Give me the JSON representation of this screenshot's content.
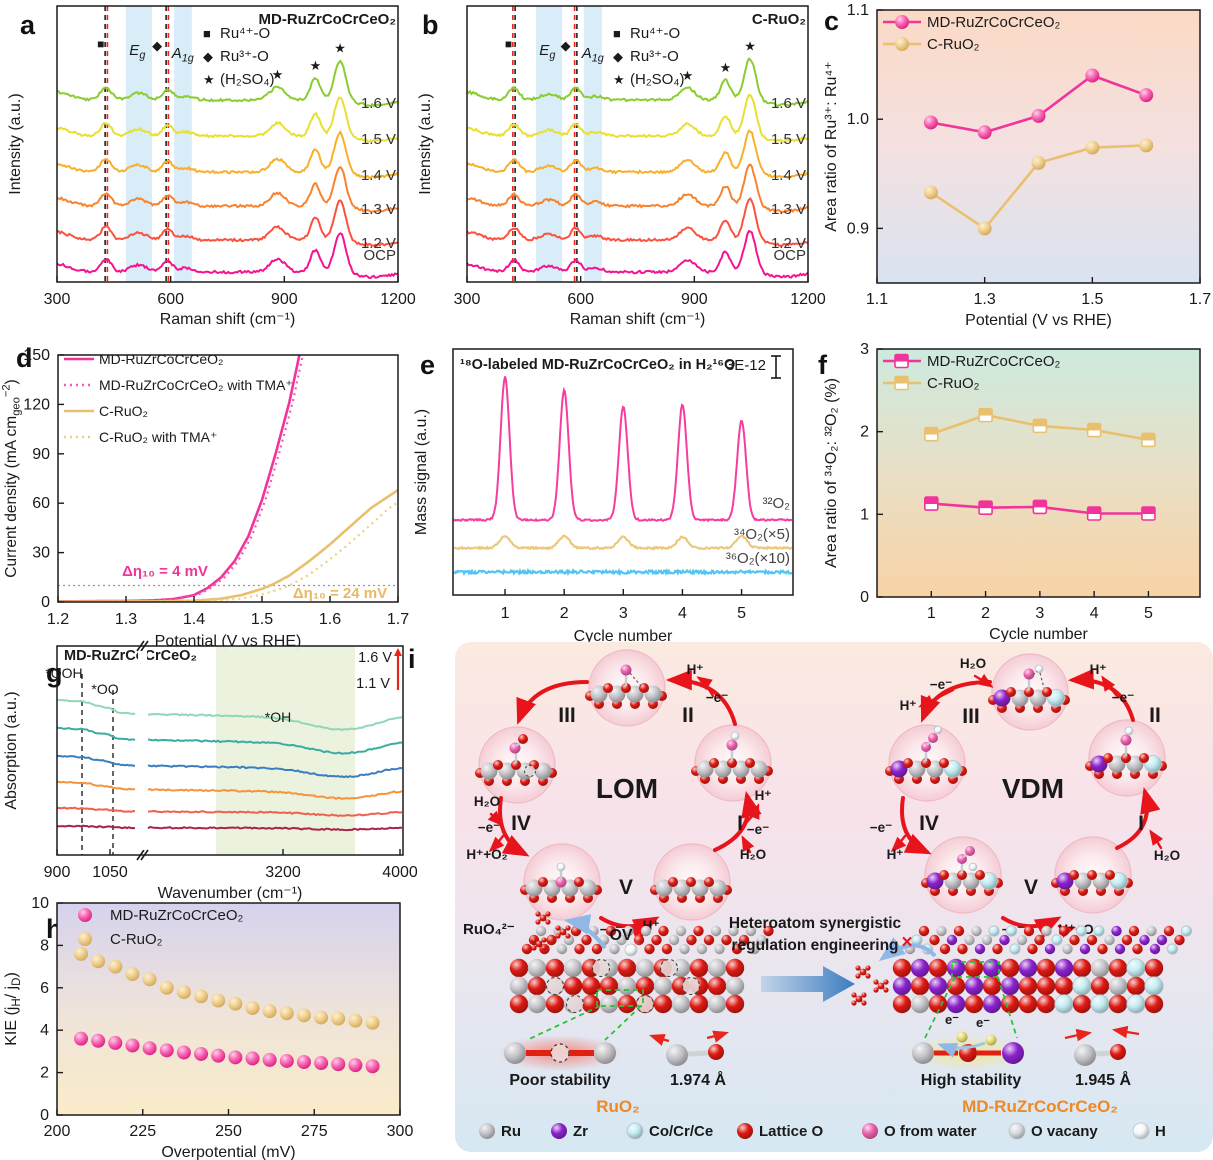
{
  "figure": {
    "panels": {
      "a": "a",
      "b": "b",
      "c": "c",
      "d": "d",
      "e": "e",
      "f": "f",
      "g": "g",
      "h": "h",
      "i": "i"
    }
  },
  "chart_data": [
    {
      "id": "a",
      "type": "raman-spectra",
      "title": "MD-RuZrCoCrCeO₂",
      "xlabel": "Raman shift (cm⁻¹)",
      "ylabel": "Intensity (a.u.)",
      "xlim": [
        300,
        1200
      ],
      "xticks": [
        300,
        600,
        900,
        1200
      ],
      "curves": [
        {
          "label": "1.6 V",
          "color": "#8bcc2f"
        },
        {
          "label": "1.5 V",
          "color": "#e8e030"
        },
        {
          "label": "1.4 V",
          "color": "#f8b02a"
        },
        {
          "label": "1.3 V",
          "color": "#f8822e"
        },
        {
          "label": "1.2 V",
          "color": "#fb5240"
        },
        {
          "label": "OCP",
          "color": "#f3148f"
        }
      ],
      "legend": [
        {
          "marker": "■",
          "label": "Ru⁴⁺-O"
        },
        {
          "marker": "◆",
          "label": "Ru³⁺-O"
        },
        {
          "marker": "★",
          "label": "(H₂SO₄)"
        }
      ],
      "bands": [
        [
          482,
          551
        ],
        [
          609,
          656
        ]
      ],
      "band_labels": [
        "E_{g}",
        "A_{1g}"
      ],
      "dash_pairs": [
        [
          427,
          433
        ],
        [
          588,
          594
        ]
      ],
      "dash_colors": [
        "#222222",
        "#e8241c"
      ],
      "peaks": [
        {
          "c": 429,
          "h": 13,
          "w": 14
        },
        {
          "c": 515,
          "h": 7,
          "w": 22
        },
        {
          "c": 592,
          "h": 11,
          "w": 13
        },
        {
          "c": 640,
          "h": 4,
          "w": 18
        },
        {
          "c": 882,
          "h": 13,
          "w": 20
        },
        {
          "c": 982,
          "h": 22,
          "w": 13
        },
        {
          "c": 1047,
          "h": 40,
          "w": 15
        },
        {
          "c": 1135,
          "h": -5,
          "w": 45
        }
      ],
      "star_x": [
        882,
        982,
        1047
      ]
    },
    {
      "id": "b",
      "type": "raman-spectra",
      "title": "C-RuO₂",
      "xlabel": "Raman shift (cm⁻¹)",
      "ylabel": "Intensity (a.u.)",
      "xlim": [
        300,
        1200
      ],
      "xticks": [
        300,
        600,
        900,
        1200
      ],
      "curves": [
        {
          "label": "1.6 V",
          "color": "#8bcc2f"
        },
        {
          "label": "1.5 V",
          "color": "#e8e030"
        },
        {
          "label": "1.4 V",
          "color": "#f8b02a"
        },
        {
          "label": "1.3 V",
          "color": "#f8822e"
        },
        {
          "label": "1.2 V",
          "color": "#fb5240"
        },
        {
          "label": "OCP",
          "color": "#f3148f"
        }
      ],
      "legend": [
        {
          "marker": "■",
          "label": "Ru⁴⁺-O"
        },
        {
          "marker": "◆",
          "label": "Ru³⁺-O"
        },
        {
          "marker": "★",
          "label": "(H₂SO₄)"
        }
      ],
      "bands": [
        [
          482,
          551
        ],
        [
          609,
          656
        ]
      ],
      "band_labels": [
        "E_{g}",
        "A_{1g}"
      ],
      "dash_pairs": [
        [
          421,
          427
        ],
        [
          584,
          590
        ]
      ],
      "dash_colors": [
        "#e8241c",
        "#222222"
      ],
      "peaks": [
        {
          "c": 424,
          "h": 12,
          "w": 14
        },
        {
          "c": 515,
          "h": 6,
          "w": 22
        },
        {
          "c": 587,
          "h": 12,
          "w": 13
        },
        {
          "c": 640,
          "h": 4,
          "w": 18
        },
        {
          "c": 882,
          "h": 12,
          "w": 20
        },
        {
          "c": 982,
          "h": 20,
          "w": 13
        },
        {
          "c": 1047,
          "h": 42,
          "w": 15
        },
        {
          "c": 1135,
          "h": -5,
          "w": 45
        }
      ],
      "star_x": [
        882,
        982,
        1047
      ]
    },
    {
      "id": "c",
      "type": "line-scatter",
      "marker": "ball",
      "xlabel": "Potential (V vs RHE)",
      "ylabel": "Area ratio of Ru³⁺: Ru⁴⁺",
      "xlim": [
        1.1,
        1.7
      ],
      "xticks": [
        1.1,
        1.3,
        1.5,
        1.7
      ],
      "ylim": [
        0.85,
        1.1
      ],
      "yticks": [
        0.9,
        1.0,
        1.1
      ],
      "bg": [
        "#fbd9c5",
        "#f4e1e0",
        "#d9e3f0"
      ],
      "series": [
        {
          "name": "MD-RuZrCoCrCeO₂",
          "color": "#f1349b",
          "ball": [
            "#ffd2ea",
            "#f868b4",
            "#d61578"
          ],
          "x": [
            1.2,
            1.3,
            1.4,
            1.5,
            1.6
          ],
          "y": [
            0.997,
            0.988,
            1.003,
            1.04,
            1.022
          ]
        },
        {
          "name": "C-RuO₂",
          "color": "#e9c06d",
          "ball": [
            "#fdf0d0",
            "#f0d194",
            "#cfa14e"
          ],
          "x": [
            1.2,
            1.3,
            1.4,
            1.5,
            1.6
          ],
          "y": [
            0.933,
            0.9,
            0.96,
            0.974,
            0.976
          ]
        }
      ]
    },
    {
      "id": "d",
      "type": "lsv",
      "xlabel": "Potential (V vs RHE)",
      "ylabel": "Current density (mA cm_{geo}^{−2})",
      "xlim": [
        1.2,
        1.7
      ],
      "xticks": [
        "1.2",
        "1.3",
        "1.4",
        "1.5",
        "1.6",
        "1.7"
      ],
      "ylim": [
        0,
        150
      ],
      "yticks": [
        0,
        30,
        60,
        90,
        120,
        150
      ],
      "ref_y": 10,
      "curves": {
        "p": [
          [
            1.2,
            0.4
          ],
          [
            1.3,
            0.6
          ],
          [
            1.34,
            1.0
          ],
          [
            1.37,
            1.8
          ],
          [
            1.4,
            4.2
          ],
          [
            1.42,
            8.5
          ],
          [
            1.44,
            15
          ],
          [
            1.46,
            25
          ],
          [
            1.48,
            40
          ],
          [
            1.5,
            62
          ],
          [
            1.52,
            90
          ],
          [
            1.54,
            121
          ],
          [
            1.555,
            150
          ],
          [
            1.565,
            165
          ]
        ],
        "g": [
          [
            1.2,
            0.2
          ],
          [
            1.35,
            0.4
          ],
          [
            1.4,
            0.8
          ],
          [
            1.44,
            2.0
          ],
          [
            1.47,
            4.2
          ],
          [
            1.5,
            8.0
          ],
          [
            1.515,
            10.5
          ],
          [
            1.54,
            16
          ],
          [
            1.57,
            25
          ],
          [
            1.6,
            35
          ],
          [
            1.63,
            46
          ],
          [
            1.66,
            57
          ],
          [
            1.7,
            68
          ]
        ]
      },
      "series": [
        {
          "name": "MD-RuZrCoCrCeO₂",
          "color": "#f1349b",
          "dash": false,
          "shift": 0,
          "key": "p"
        },
        {
          "name": "MD-RuZrCoCrCeO₂ with TMA⁺",
          "color": "#f45cb0",
          "dash": true,
          "shift": 0.005,
          "key": "p"
        },
        {
          "name": "C-RuO₂",
          "color": "#e9c06d",
          "dash": false,
          "shift": 0,
          "key": "g"
        },
        {
          "name": "C-RuO₂ with TMA⁺",
          "color": "#eecd87",
          "dash": true,
          "shift": 0.027,
          "key": "g"
        }
      ],
      "annotations": [
        {
          "text": "Δη₁₀ = 4 mV",
          "color": "#f1349b"
        },
        {
          "text": "Δη₁₀ = 24 mV",
          "color": "#e9b964"
        }
      ]
    },
    {
      "id": "e",
      "type": "dems",
      "title": "¹⁸O-labeled MD-RuZrCoCrCeO₂ in H₂¹⁶O",
      "scalebar": "3E-12",
      "xlabel": "Cycle number",
      "ylabel": "Mass signal (a.u.)",
      "xticks": [
        1,
        2,
        3,
        4,
        5
      ],
      "traces": [
        {
          "label": "³²O₂",
          "color": "#f63d9e",
          "baseline": 200,
          "heights": [
            143,
            130,
            113,
            115,
            100
          ],
          "width": 0.075,
          "label_y": 188
        },
        {
          "label": "³⁴O₂(×5)",
          "color": "#ecc87c",
          "baseline": 228,
          "heights": [
            12,
            12,
            11,
            11,
            12
          ],
          "width": 0.09,
          "label_y": 219
        },
        {
          "label": "³⁶O₂(×10)",
          "color": "#54c4f0",
          "baseline": 252,
          "heights": [
            0,
            0,
            0,
            0,
            0
          ],
          "width": 0.09,
          "label_y": 243
        }
      ]
    },
    {
      "id": "f",
      "type": "line-scatter",
      "marker": "sq",
      "xlabel": "Cycle number",
      "ylabel": "Area ratio of ³⁴O₂: ³²O₂ (%)",
      "xlim": [
        0,
        5.95
      ],
      "xticks": [
        1,
        2,
        3,
        4,
        5
      ],
      "ylim": [
        0,
        3
      ],
      "yticks": [
        0,
        1,
        2,
        3
      ],
      "bg": [
        "#cdeade",
        "#e9dfc6",
        "#f8d3a6"
      ],
      "series": [
        {
          "name": "MD-RuZrCoCrCeO₂",
          "color": "#f1349b",
          "ball": [
            "#ffd2ea",
            "#f868b4",
            "#d61578"
          ],
          "x": [
            1,
            2,
            3,
            4,
            5
          ],
          "y": [
            1.13,
            1.08,
            1.09,
            1.01,
            1.01
          ]
        },
        {
          "name": "C-RuO₂",
          "color": "#e9c06d",
          "ball": [
            "#fdf0d0",
            "#f0d194",
            "#cfa14e"
          ],
          "x": [
            1,
            2,
            3,
            4,
            5
          ],
          "y": [
            1.97,
            2.2,
            2.07,
            2.02,
            1.9
          ]
        }
      ]
    },
    {
      "id": "g",
      "type": "ftir",
      "title": "MD-RuZrCoCrCeO₂",
      "xlabel": "Wavenumber (cm⁻¹)",
      "ylabel": "Absorption (a.u.)",
      "tick_labels": [
        "900",
        "1050",
        "3200",
        "4000"
      ],
      "dash_labels": [
        "*OOH",
        "*OO"
      ],
      "oh_label": "*OH",
      "arrow_labels": [
        "1.6 V",
        "1.1 V"
      ],
      "colors": [
        "#90d7b5",
        "#3aaca1",
        "#3b7ec0",
        "#f6933d",
        "#ef604e",
        "#a72547"
      ],
      "baselines": [
        60,
        88,
        116,
        142,
        168,
        186
      ],
      "amps": [
        1,
        0.85,
        0.7,
        0.55,
        0.25,
        0.12
      ]
    },
    {
      "id": "h",
      "type": "scatter",
      "marker": "ball",
      "xlabel": "Overpotential (mV)",
      "ylabel": "KIE (j_{H}/ j_{D})",
      "xlim": [
        200,
        300
      ],
      "xticks": [
        200,
        225,
        250,
        275,
        300
      ],
      "ylim": [
        0,
        10
      ],
      "yticks": [
        0,
        2,
        4,
        6,
        8,
        10
      ],
      "bg": [
        "#d6d2ed",
        "#eee3da",
        "#faecca"
      ],
      "series": [
        {
          "name": "MD-RuZrCoCrCeO₂",
          "color": "#f1349b",
          "ball": [
            "#ffd2ea",
            "#f868b4",
            "#d61578"
          ],
          "x": [
            207,
            212,
            217,
            222,
            227,
            232,
            237,
            242,
            247,
            252,
            257,
            262,
            267,
            272,
            277,
            282,
            287,
            292
          ],
          "y": [
            3.6,
            3.5,
            3.4,
            3.28,
            3.15,
            3.05,
            2.95,
            2.88,
            2.8,
            2.72,
            2.67,
            2.6,
            2.55,
            2.5,
            2.45,
            2.4,
            2.35,
            2.3
          ]
        },
        {
          "name": "C-RuO₂",
          "color": "#e9c06d",
          "ball": [
            "#fdf0d0",
            "#f0d194",
            "#cfa14e"
          ],
          "x": [
            207,
            212,
            217,
            222,
            227,
            232,
            237,
            242,
            247,
            252,
            257,
            262,
            267,
            272,
            277,
            282,
            287,
            292
          ],
          "y": [
            7.6,
            7.25,
            7.0,
            6.65,
            6.4,
            6.0,
            5.8,
            5.6,
            5.4,
            5.25,
            5.05,
            4.9,
            4.8,
            4.7,
            4.6,
            4.55,
            4.45,
            4.35
          ]
        }
      ]
    }
  ],
  "mechanism": {
    "lom": "LOM",
    "vdm": "VDM",
    "steps": [
      "I",
      "II",
      "III",
      "IV",
      "V"
    ],
    "h_plus": "H⁺",
    "e_minus": "−e⁻",
    "h2o": "H₂O",
    "h_o2": "H⁺+O₂",
    "ruo4": "RuO₄²⁻",
    "ov": "O_{V}",
    "x_mark": "×",
    "e_label": "e⁻",
    "het1": "Heteroatom synergistic",
    "het2": "regulation engineering",
    "poor": "Poor stability",
    "high": "High stability",
    "len_poor": "1.974 Å",
    "len_high": "1.945 Å",
    "mat_poor": "RuO₂",
    "mat_high": "MD-RuZrCoCrCeO₂",
    "legend": [
      {
        "key": "ru",
        "label": "Ru"
      },
      {
        "key": "zr",
        "label": "Zr"
      },
      {
        "key": "ce",
        "label": "Co/Cr/Ce"
      },
      {
        "key": "o",
        "label": "Lattice O"
      },
      {
        "key": "ow",
        "label": "O from water"
      },
      {
        "key": "ovac",
        "label": "O vacany"
      },
      {
        "key": "h",
        "label": "H"
      }
    ],
    "atom_colors": {
      "ru": "#c6c6cb",
      "o": "#dd1a12",
      "zr": "#8b22cc",
      "ce": "#c3ecf2",
      "ow": "#ee5fae",
      "h": "#f4f8f9",
      "ovac": "#d7dbdf",
      "el": "#e6dd76"
    }
  }
}
